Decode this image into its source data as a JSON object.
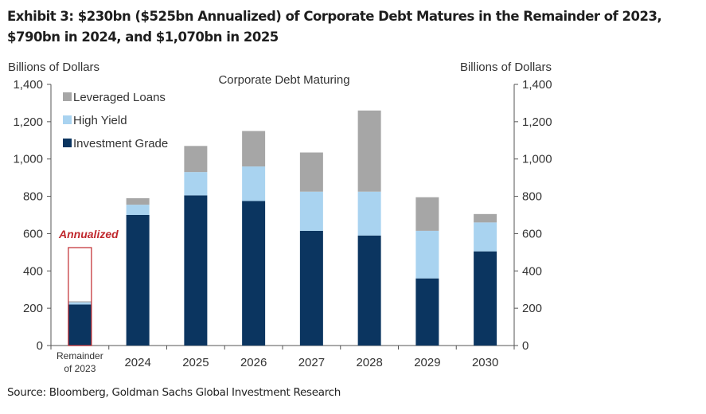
{
  "title": "Exhibit 3: $230bn ($525bn Annualized) of Corporate Debt Matures in the Remainder of 2023, $790bn in 2024, and $1,070bn in 2025",
  "source": "Source: Bloomberg, Goldman Sachs Global Investment Research",
  "chart_data": {
    "type": "bar",
    "stacked": true,
    "title": "Corporate  Debt Maturing",
    "ylabel_left": "Billions of Dollars",
    "ylabel_right": "Billions of Dollars",
    "ylim": [
      0,
      1400
    ],
    "yticks": [
      "0",
      "200",
      "400",
      "600",
      "800",
      "1,000",
      "1,200",
      "1,400"
    ],
    "categories": [
      "Remainder of 2023",
      "2024",
      "2025",
      "2026",
      "2027",
      "2028",
      "2029",
      "2030"
    ],
    "category_lines": [
      [
        "Remainder",
        "of 2023"
      ],
      [
        "2024"
      ],
      [
        "2025"
      ],
      [
        "2026"
      ],
      [
        "2027"
      ],
      [
        "2028"
      ],
      [
        "2029"
      ],
      [
        "2030"
      ]
    ],
    "series": [
      {
        "name": "Investment Grade",
        "color": "#0b3560",
        "values": [
          220,
          700,
          805,
          775,
          615,
          590,
          360,
          505
        ]
      },
      {
        "name": "High Yield",
        "color": "#a9d3f0",
        "values": [
          12,
          55,
          125,
          185,
          210,
          235,
          255,
          155
        ]
      },
      {
        "name": "Leveraged Loans",
        "color": "#a6a6a6",
        "values": [
          5,
          35,
          140,
          190,
          210,
          435,
          180,
          45
        ]
      }
    ],
    "legend_order": [
      "Leveraged Loans",
      "High Yield",
      "Investment Grade"
    ],
    "legend_position": "top-left",
    "annotation": {
      "text": "Annualized",
      "category": "Remainder of 2023",
      "value": 525,
      "color": "#c0282d"
    },
    "grid": false
  }
}
